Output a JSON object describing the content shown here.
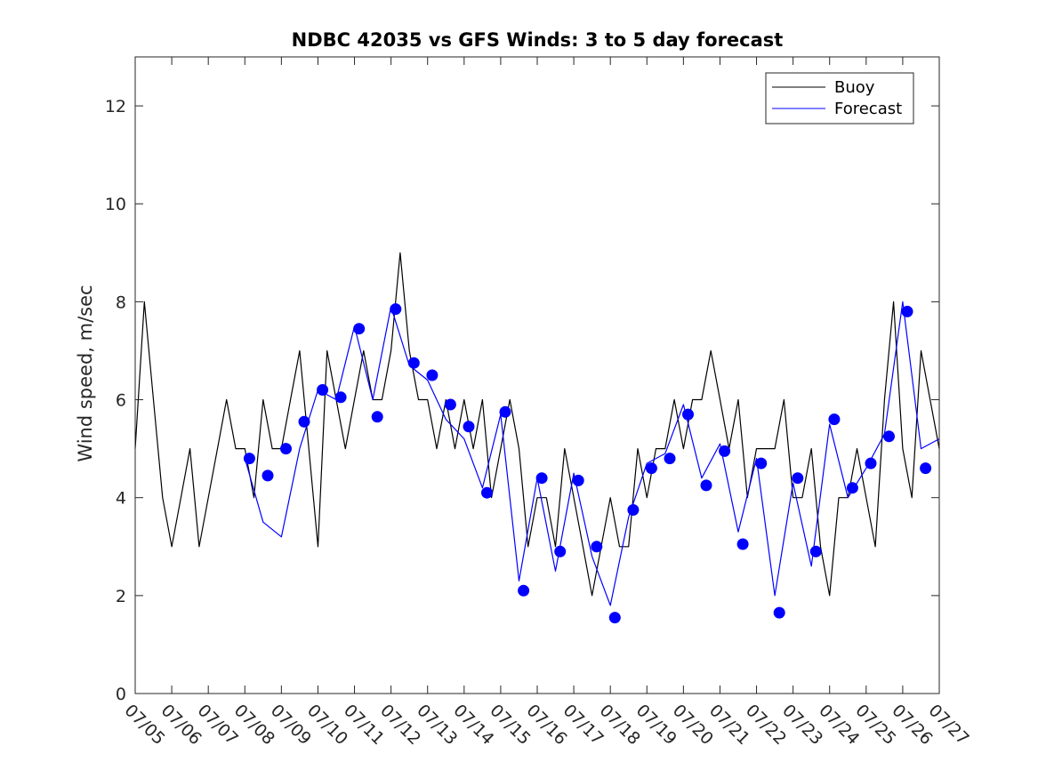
{
  "chart_data": {
    "type": "line",
    "title": "NDBC 42035 vs GFS Winds: 3 to 5 day forecast",
    "xlabel": "",
    "ylabel": "Wind speed, m/sec",
    "xlim": [
      "07/05",
      "07/27"
    ],
    "ylim": [
      0,
      13
    ],
    "x_ticks": [
      "07/05",
      "07/06",
      "07/07",
      "07/08",
      "07/09",
      "07/10",
      "07/11",
      "07/12",
      "07/13",
      "07/14",
      "07/15",
      "07/16",
      "07/17",
      "07/18",
      "07/19",
      "07/20",
      "07/21",
      "07/22",
      "07/23",
      "07/24",
      "07/25",
      "07/26",
      "07/27"
    ],
    "y_ticks": [
      0,
      2,
      4,
      6,
      8,
      10,
      12
    ],
    "grid": false,
    "legend": {
      "placement": "top-right",
      "entries": [
        "Buoy",
        "Forecast"
      ]
    },
    "colors": {
      "buoy": "#000000",
      "forecast": "#0000ff",
      "markers": "#0000ff"
    },
    "series": [
      {
        "name": "Buoy",
        "x": [
          "07/05 00:00",
          "07/05 06:00",
          "07/05 12:00",
          "07/05 18:00",
          "07/06 00:00",
          "07/06 06:00",
          "07/06 12:00",
          "07/06 18:00",
          "07/07 00:00",
          "07/07 06:00",
          "07/07 12:00",
          "07/07 18:00",
          "07/08 00:00",
          "07/08 06:00",
          "07/08 12:00",
          "07/08 18:00",
          "07/09 00:00",
          "07/09 06:00",
          "07/09 12:00",
          "07/09 18:00",
          "07/10 00:00",
          "07/10 06:00",
          "07/10 12:00",
          "07/10 18:00",
          "07/11 00:00",
          "07/11 06:00",
          "07/11 12:00",
          "07/11 18:00",
          "07/12 00:00",
          "07/12 06:00",
          "07/12 12:00",
          "07/12 18:00",
          "07/13 00:00",
          "07/13 06:00",
          "07/13 12:00",
          "07/13 18:00",
          "07/14 00:00",
          "07/14 06:00",
          "07/14 12:00",
          "07/14 18:00",
          "07/15 00:00",
          "07/15 06:00",
          "07/15 12:00",
          "07/15 18:00",
          "07/16 00:00",
          "07/16 06:00",
          "07/16 12:00",
          "07/16 18:00",
          "07/17 00:00",
          "07/17 06:00",
          "07/17 12:00",
          "07/17 18:00",
          "07/18 00:00",
          "07/18 06:00",
          "07/18 12:00",
          "07/18 18:00",
          "07/19 00:00",
          "07/19 06:00",
          "07/19 12:00",
          "07/19 18:00",
          "07/20 00:00",
          "07/20 06:00",
          "07/20 12:00",
          "07/20 18:00",
          "07/21 00:00",
          "07/21 06:00",
          "07/21 12:00",
          "07/21 18:00",
          "07/22 00:00",
          "07/22 06:00",
          "07/22 12:00",
          "07/22 18:00",
          "07/23 00:00",
          "07/23 06:00",
          "07/23 12:00",
          "07/23 18:00",
          "07/24 00:00",
          "07/24 06:00",
          "07/24 12:00",
          "07/24 18:00",
          "07/25 00:00",
          "07/25 06:00",
          "07/25 12:00",
          "07/25 18:00",
          "07/26 00:00",
          "07/26 06:00",
          "07/26 12:00",
          "07/26 18:00",
          "07/27 00:00"
        ],
        "values": [
          5,
          8,
          6,
          4,
          3,
          4,
          5,
          3,
          4,
          5,
          6,
          5,
          5,
          4,
          6,
          5,
          5,
          6,
          7,
          5,
          3,
          7,
          6,
          5,
          6,
          7,
          6,
          6,
          7,
          9,
          7,
          6,
          6,
          5,
          6,
          5,
          6,
          5,
          6,
          4,
          5,
          6,
          5,
          3,
          4,
          4,
          3,
          5,
          4,
          3,
          2,
          3,
          4,
          3,
          3,
          5,
          4,
          5,
          5,
          6,
          5,
          6,
          6,
          7,
          6,
          5,
          6,
          4,
          5,
          5,
          5,
          6,
          4,
          4,
          5,
          3,
          2,
          4,
          4,
          5,
          4,
          3,
          6,
          8,
          5,
          4,
          7,
          6,
          5
        ]
      },
      {
        "name": "Forecast",
        "x": [
          "07/08 00:00",
          "07/08 12:00",
          "07/09 00:00",
          "07/09 12:00",
          "07/10 00:00",
          "07/10 12:00",
          "07/11 00:00",
          "07/11 12:00",
          "07/12 00:00",
          "07/12 12:00",
          "07/13 00:00",
          "07/13 12:00",
          "07/14 00:00",
          "07/14 12:00",
          "07/15 00:00",
          "07/15 12:00",
          "07/16 00:00",
          "07/16 12:00",
          "07/17 00:00",
          "07/17 12:00",
          "07/18 00:00",
          "07/18 12:00",
          "07/19 00:00",
          "07/19 12:00",
          "07/20 00:00",
          "07/20 12:00",
          "07/21 00:00",
          "07/21 12:00",
          "07/22 00:00",
          "07/22 12:00",
          "07/23 00:00",
          "07/23 12:00",
          "07/24 00:00",
          "07/24 12:00",
          "07/25 00:00",
          "07/25 12:00",
          "07/26 00:00",
          "07/26 12:00",
          "07/27 00:00"
        ],
        "values": [
          4.8,
          3.5,
          3.2,
          5.0,
          6.2,
          6.0,
          7.5,
          6.0,
          7.9,
          6.7,
          6.4,
          5.6,
          5.2,
          4.2,
          5.7,
          2.3,
          4.4,
          2.5,
          4.5,
          2.8,
          1.8,
          3.6,
          4.7,
          4.9,
          5.9,
          4.4,
          5.1,
          3.3,
          4.8,
          2.0,
          4.3,
          2.6,
          5.5,
          4.0,
          4.6,
          5.3,
          8.0,
          5.0,
          5.2
        ]
      },
      {
        "name": "",
        "type": "scatter",
        "x": [
          "07/08 03:00",
          "07/08 15:00",
          "07/09 03:00",
          "07/09 15:00",
          "07/10 03:00",
          "07/10 15:00",
          "07/11 03:00",
          "07/11 15:00",
          "07/12 03:00",
          "07/12 15:00",
          "07/13 03:00",
          "07/13 15:00",
          "07/14 03:00",
          "07/14 15:00",
          "07/15 03:00",
          "07/15 15:00",
          "07/16 03:00",
          "07/16 15:00",
          "07/17 03:00",
          "07/17 15:00",
          "07/18 03:00",
          "07/18 15:00",
          "07/19 03:00",
          "07/19 15:00",
          "07/20 03:00",
          "07/20 15:00",
          "07/21 03:00",
          "07/21 15:00",
          "07/22 03:00",
          "07/22 15:00",
          "07/23 03:00",
          "07/23 15:00",
          "07/24 03:00",
          "07/24 15:00",
          "07/25 03:00",
          "07/25 15:00",
          "07/26 03:00",
          "07/26 15:00"
        ],
        "values": [
          4.8,
          4.45,
          5.0,
          5.55,
          6.2,
          6.05,
          7.45,
          5.65,
          7.85,
          6.75,
          6.5,
          5.9,
          5.45,
          4.1,
          5.75,
          2.1,
          4.4,
          2.9,
          4.35,
          3.0,
          1.55,
          3.75,
          4.6,
          4.8,
          5.7,
          4.25,
          4.95,
          3.05,
          4.7,
          1.65,
          4.4,
          2.9,
          5.6,
          4.2,
          4.7,
          5.25,
          7.8,
          4.6
        ]
      }
    ]
  }
}
